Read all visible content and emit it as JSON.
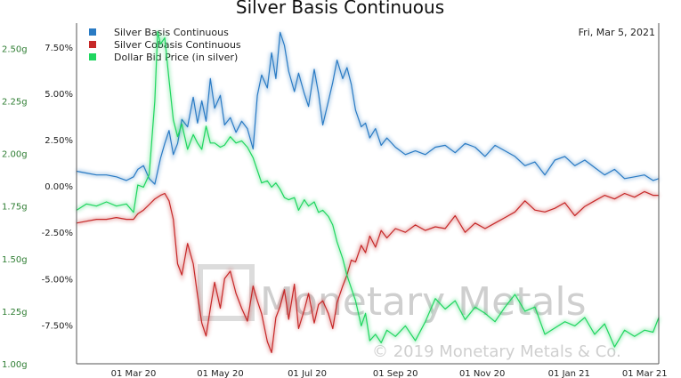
{
  "chart_data": {
    "type": "line",
    "title": "Silver Basis Continuous",
    "date_label": "Fri, Mar 5, 2021",
    "watermark": {
      "brand": "Monetary Metals",
      "copyright": "© 2019 Monetary Metals & Co."
    },
    "x_ticks": [
      "01 Mar 20",
      "01 May 20",
      "01 Jul 20",
      "01 Sep 20",
      "01 Nov 20",
      "01 Jan 21",
      "01 Mar 21"
    ],
    "x_range": [
      "2020-01-21",
      "2021-03-05"
    ],
    "y_left": {
      "ticks": [
        "1.00g",
        "1.25g",
        "1.50g",
        "1.75g",
        "2.00g",
        "2.25g",
        "2.50g"
      ],
      "range": [
        1.0,
        2.62
      ]
    },
    "y_right": {
      "ticks": [
        "-7.50%",
        "-5.00%",
        "-2.50%",
        "0.00%",
        "2.50%",
        "5.00%",
        "7.50%"
      ],
      "range": [
        -9.6,
        8.8
      ]
    },
    "legend_position": "top-left",
    "grid": false,
    "series": [
      {
        "name": "Silver Basis Continuous",
        "axis": "right",
        "color": "#2a7bc4",
        "points": [
          [
            "2020-01-21",
            0.8
          ],
          [
            "2020-01-28",
            0.7
          ],
          [
            "2020-02-04",
            0.6
          ],
          [
            "2020-02-11",
            0.6
          ],
          [
            "2020-02-18",
            0.5
          ],
          [
            "2020-02-25",
            0.3
          ],
          [
            "2020-03-01",
            0.5
          ],
          [
            "2020-03-04",
            0.9
          ],
          [
            "2020-03-08",
            1.1
          ],
          [
            "2020-03-12",
            0.4
          ],
          [
            "2020-03-16",
            0.1
          ],
          [
            "2020-03-20",
            1.5
          ],
          [
            "2020-03-23",
            2.3
          ],
          [
            "2020-03-26",
            3.0
          ],
          [
            "2020-03-29",
            1.7
          ],
          [
            "2020-04-01",
            2.3
          ],
          [
            "2020-04-04",
            3.6
          ],
          [
            "2020-04-08",
            3.2
          ],
          [
            "2020-04-12",
            4.8
          ],
          [
            "2020-04-15",
            3.4
          ],
          [
            "2020-04-18",
            4.6
          ],
          [
            "2020-04-21",
            3.5
          ],
          [
            "2020-04-24",
            5.8
          ],
          [
            "2020-04-27",
            4.2
          ],
          [
            "2020-05-01",
            4.9
          ],
          [
            "2020-05-04",
            3.3
          ],
          [
            "2020-05-08",
            3.7
          ],
          [
            "2020-05-12",
            2.9
          ],
          [
            "2020-05-16",
            3.5
          ],
          [
            "2020-05-20",
            3.1
          ],
          [
            "2020-05-24",
            2.0
          ],
          [
            "2020-05-27",
            4.9
          ],
          [
            "2020-05-30",
            6.0
          ],
          [
            "2020-06-03",
            5.3
          ],
          [
            "2020-06-06",
            7.2
          ],
          [
            "2020-06-09",
            5.8
          ],
          [
            "2020-06-12",
            8.3
          ],
          [
            "2020-06-15",
            7.6
          ],
          [
            "2020-06-18",
            6.2
          ],
          [
            "2020-06-22",
            5.1
          ],
          [
            "2020-06-25",
            6.1
          ],
          [
            "2020-06-29",
            5.0
          ],
          [
            "2020-07-02",
            4.3
          ],
          [
            "2020-07-06",
            6.3
          ],
          [
            "2020-07-09",
            5.0
          ],
          [
            "2020-07-12",
            3.3
          ],
          [
            "2020-07-16",
            4.6
          ],
          [
            "2020-07-19",
            5.6
          ],
          [
            "2020-07-22",
            6.8
          ],
          [
            "2020-07-26",
            5.8
          ],
          [
            "2020-07-29",
            6.4
          ],
          [
            "2020-08-01",
            5.5
          ],
          [
            "2020-08-04",
            4.1
          ],
          [
            "2020-08-08",
            3.2
          ],
          [
            "2020-08-11",
            3.4
          ],
          [
            "2020-08-14",
            2.6
          ],
          [
            "2020-08-18",
            3.1
          ],
          [
            "2020-08-22",
            2.2
          ],
          [
            "2020-08-26",
            2.6
          ],
          [
            "2020-09-01",
            2.1
          ],
          [
            "2020-09-08",
            1.7
          ],
          [
            "2020-09-15",
            1.9
          ],
          [
            "2020-09-22",
            1.7
          ],
          [
            "2020-09-29",
            2.1
          ],
          [
            "2020-10-06",
            2.2
          ],
          [
            "2020-10-13",
            1.8
          ],
          [
            "2020-10-20",
            2.3
          ],
          [
            "2020-10-27",
            2.1
          ],
          [
            "2020-11-03",
            1.6
          ],
          [
            "2020-11-10",
            2.2
          ],
          [
            "2020-11-17",
            1.9
          ],
          [
            "2020-11-24",
            1.6
          ],
          [
            "2020-12-01",
            1.1
          ],
          [
            "2020-12-08",
            1.3
          ],
          [
            "2020-12-15",
            0.6
          ],
          [
            "2020-12-22",
            1.4
          ],
          [
            "2020-12-29",
            1.6
          ],
          [
            "2021-01-05",
            1.1
          ],
          [
            "2021-01-12",
            1.4
          ],
          [
            "2021-01-19",
            1.0
          ],
          [
            "2021-01-26",
            0.6
          ],
          [
            "2021-02-02",
            0.9
          ],
          [
            "2021-02-09",
            0.4
          ],
          [
            "2021-02-16",
            0.5
          ],
          [
            "2021-02-23",
            0.6
          ],
          [
            "2021-03-01",
            0.3
          ],
          [
            "2021-03-05",
            0.4
          ]
        ]
      },
      {
        "name": "Silver Cobasis Continuous",
        "axis": "right",
        "color": "#c62828",
        "points": [
          [
            "2020-01-21",
            -2.0
          ],
          [
            "2020-01-28",
            -1.9
          ],
          [
            "2020-02-04",
            -1.8
          ],
          [
            "2020-02-11",
            -1.8
          ],
          [
            "2020-02-18",
            -1.7
          ],
          [
            "2020-02-25",
            -1.8
          ],
          [
            "2020-03-01",
            -1.8
          ],
          [
            "2020-03-04",
            -1.5
          ],
          [
            "2020-03-08",
            -1.3
          ],
          [
            "2020-03-12",
            -1.0
          ],
          [
            "2020-03-16",
            -0.7
          ],
          [
            "2020-03-20",
            -0.5
          ],
          [
            "2020-03-23",
            -0.4
          ],
          [
            "2020-03-26",
            -0.8
          ],
          [
            "2020-03-29",
            -1.8
          ],
          [
            "2020-04-01",
            -4.2
          ],
          [
            "2020-04-04",
            -4.8
          ],
          [
            "2020-04-08",
            -3.1
          ],
          [
            "2020-04-12",
            -4.2
          ],
          [
            "2020-04-15",
            -5.9
          ],
          [
            "2020-04-18",
            -7.4
          ],
          [
            "2020-04-21",
            -8.1
          ],
          [
            "2020-04-24",
            -6.6
          ],
          [
            "2020-04-27",
            -5.2
          ],
          [
            "2020-05-01",
            -6.6
          ],
          [
            "2020-05-04",
            -5.0
          ],
          [
            "2020-05-08",
            -4.6
          ],
          [
            "2020-05-12",
            -5.8
          ],
          [
            "2020-05-16",
            -6.6
          ],
          [
            "2020-05-20",
            -7.3
          ],
          [
            "2020-05-24",
            -5.4
          ],
          [
            "2020-05-27",
            -6.2
          ],
          [
            "2020-05-30",
            -6.9
          ],
          [
            "2020-06-03",
            -8.4
          ],
          [
            "2020-06-06",
            -9.0
          ],
          [
            "2020-06-09",
            -7.1
          ],
          [
            "2020-06-12",
            -6.5
          ],
          [
            "2020-06-15",
            -5.6
          ],
          [
            "2020-06-18",
            -7.2
          ],
          [
            "2020-06-22",
            -5.3
          ],
          [
            "2020-06-25",
            -7.7
          ],
          [
            "2020-06-29",
            -6.7
          ],
          [
            "2020-07-02",
            -5.8
          ],
          [
            "2020-07-06",
            -7.4
          ],
          [
            "2020-07-09",
            -6.4
          ],
          [
            "2020-07-12",
            -6.2
          ],
          [
            "2020-07-16",
            -6.9
          ],
          [
            "2020-07-19",
            -7.7
          ],
          [
            "2020-07-22",
            -6.3
          ],
          [
            "2020-07-26",
            -5.4
          ],
          [
            "2020-07-29",
            -4.8
          ],
          [
            "2020-08-01",
            -4.0
          ],
          [
            "2020-08-04",
            -4.1
          ],
          [
            "2020-08-08",
            -3.2
          ],
          [
            "2020-08-11",
            -3.6
          ],
          [
            "2020-08-14",
            -2.7
          ],
          [
            "2020-08-18",
            -3.3
          ],
          [
            "2020-08-22",
            -2.4
          ],
          [
            "2020-08-26",
            -2.8
          ],
          [
            "2020-09-01",
            -2.3
          ],
          [
            "2020-09-08",
            -2.5
          ],
          [
            "2020-09-15",
            -2.1
          ],
          [
            "2020-09-22",
            -2.4
          ],
          [
            "2020-09-29",
            -2.2
          ],
          [
            "2020-10-06",
            -2.3
          ],
          [
            "2020-10-13",
            -1.6
          ],
          [
            "2020-10-20",
            -2.5
          ],
          [
            "2020-10-27",
            -2.0
          ],
          [
            "2020-11-03",
            -2.3
          ],
          [
            "2020-11-10",
            -2.0
          ],
          [
            "2020-11-17",
            -1.7
          ],
          [
            "2020-11-24",
            -1.4
          ],
          [
            "2020-12-01",
            -0.8
          ],
          [
            "2020-12-08",
            -1.3
          ],
          [
            "2020-12-15",
            -1.4
          ],
          [
            "2020-12-22",
            -1.2
          ],
          [
            "2020-12-29",
            -0.9
          ],
          [
            "2021-01-05",
            -1.6
          ],
          [
            "2021-01-12",
            -1.1
          ],
          [
            "2021-01-19",
            -0.8
          ],
          [
            "2021-01-26",
            -0.5
          ],
          [
            "2021-02-02",
            -0.7
          ],
          [
            "2021-02-09",
            -0.4
          ],
          [
            "2021-02-16",
            -0.6
          ],
          [
            "2021-02-23",
            -0.3
          ],
          [
            "2021-03-01",
            -0.5
          ],
          [
            "2021-03-05",
            -0.5
          ]
        ]
      },
      {
        "name": "Dollar Bid Price (in silver)",
        "axis": "left",
        "color": "#1fd65f",
        "points": [
          [
            "2020-01-21",
            1.73
          ],
          [
            "2020-01-28",
            1.76
          ],
          [
            "2020-02-04",
            1.75
          ],
          [
            "2020-02-11",
            1.77
          ],
          [
            "2020-02-18",
            1.75
          ],
          [
            "2020-02-25",
            1.76
          ],
          [
            "2020-03-01",
            1.72
          ],
          [
            "2020-03-04",
            1.85
          ],
          [
            "2020-03-08",
            1.84
          ],
          [
            "2020-03-12",
            1.9
          ],
          [
            "2020-03-16",
            2.25
          ],
          [
            "2020-03-18",
            2.58
          ],
          [
            "2020-03-20",
            2.52
          ],
          [
            "2020-03-23",
            2.55
          ],
          [
            "2020-03-26",
            2.35
          ],
          [
            "2020-03-29",
            2.16
          ],
          [
            "2020-04-01",
            2.08
          ],
          [
            "2020-04-04",
            2.14
          ],
          [
            "2020-04-08",
            2.02
          ],
          [
            "2020-04-12",
            2.09
          ],
          [
            "2020-04-15",
            2.05
          ],
          [
            "2020-04-18",
            2.02
          ],
          [
            "2020-04-21",
            2.13
          ],
          [
            "2020-04-24",
            2.05
          ],
          [
            "2020-04-27",
            2.05
          ],
          [
            "2020-05-01",
            2.03
          ],
          [
            "2020-05-04",
            2.04
          ],
          [
            "2020-05-08",
            2.08
          ],
          [
            "2020-05-12",
            2.05
          ],
          [
            "2020-05-16",
            2.06
          ],
          [
            "2020-05-20",
            2.03
          ],
          [
            "2020-05-24",
            1.98
          ],
          [
            "2020-05-27",
            1.92
          ],
          [
            "2020-05-30",
            1.86
          ],
          [
            "2020-06-03",
            1.87
          ],
          [
            "2020-06-06",
            1.84
          ],
          [
            "2020-06-09",
            1.86
          ],
          [
            "2020-06-12",
            1.83
          ],
          [
            "2020-06-15",
            1.79
          ],
          [
            "2020-06-18",
            1.78
          ],
          [
            "2020-06-22",
            1.79
          ],
          [
            "2020-06-25",
            1.73
          ],
          [
            "2020-06-29",
            1.78
          ],
          [
            "2020-07-02",
            1.75
          ],
          [
            "2020-07-06",
            1.77
          ],
          [
            "2020-07-09",
            1.72
          ],
          [
            "2020-07-12",
            1.73
          ],
          [
            "2020-07-16",
            1.7
          ],
          [
            "2020-07-19",
            1.66
          ],
          [
            "2020-07-22",
            1.58
          ],
          [
            "2020-07-26",
            1.5
          ],
          [
            "2020-07-29",
            1.42
          ],
          [
            "2020-08-01",
            1.36
          ],
          [
            "2020-08-04",
            1.3
          ],
          [
            "2020-08-08",
            1.18
          ],
          [
            "2020-08-11",
            1.24
          ],
          [
            "2020-08-14",
            1.11
          ],
          [
            "2020-08-18",
            1.14
          ],
          [
            "2020-08-22",
            1.1
          ],
          [
            "2020-08-26",
            1.16
          ],
          [
            "2020-09-01",
            1.13
          ],
          [
            "2020-09-08",
            1.18
          ],
          [
            "2020-09-15",
            1.11
          ],
          [
            "2020-09-22",
            1.2
          ],
          [
            "2020-09-29",
            1.31
          ],
          [
            "2020-10-06",
            1.26
          ],
          [
            "2020-10-13",
            1.3
          ],
          [
            "2020-10-20",
            1.21
          ],
          [
            "2020-10-27",
            1.27
          ],
          [
            "2020-11-03",
            1.24
          ],
          [
            "2020-11-10",
            1.2
          ],
          [
            "2020-11-17",
            1.27
          ],
          [
            "2020-11-24",
            1.33
          ],
          [
            "2020-12-01",
            1.25
          ],
          [
            "2020-12-08",
            1.27
          ],
          [
            "2020-12-15",
            1.14
          ],
          [
            "2020-12-22",
            1.17
          ],
          [
            "2020-12-29",
            1.2
          ],
          [
            "2021-01-05",
            1.18
          ],
          [
            "2021-01-12",
            1.22
          ],
          [
            "2021-01-19",
            1.14
          ],
          [
            "2021-01-26",
            1.19
          ],
          [
            "2021-02-02",
            1.08
          ],
          [
            "2021-02-09",
            1.16
          ],
          [
            "2021-02-16",
            1.13
          ],
          [
            "2021-02-23",
            1.16
          ],
          [
            "2021-03-01",
            1.15
          ],
          [
            "2021-03-05",
            1.22
          ]
        ]
      }
    ]
  }
}
